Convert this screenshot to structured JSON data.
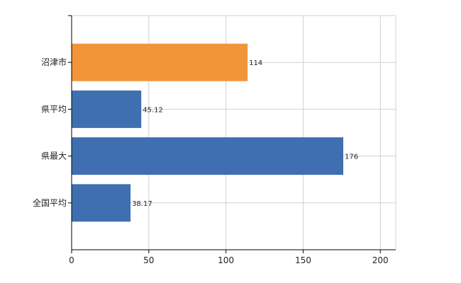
{
  "chart_data": {
    "type": "bar",
    "orientation": "horizontal",
    "categories": [
      "沼津市",
      "県平均",
      "県最大",
      "全国平均"
    ],
    "values": [
      114,
      45.12,
      176,
      38.17
    ],
    "value_labels": [
      "114",
      "45.12",
      "176",
      "38.17"
    ],
    "bar_colors": [
      "#f0953a",
      "#3f6fb0",
      "#3f6fb0",
      "#3f6fb0"
    ],
    "xlim": [
      0,
      210
    ],
    "x_ticks": [
      0,
      50,
      100,
      150,
      200
    ],
    "x_tick_labels": [
      "0",
      "50",
      "100",
      "150",
      "200"
    ],
    "grid": true,
    "title": "",
    "xlabel": "",
    "ylabel": ""
  }
}
